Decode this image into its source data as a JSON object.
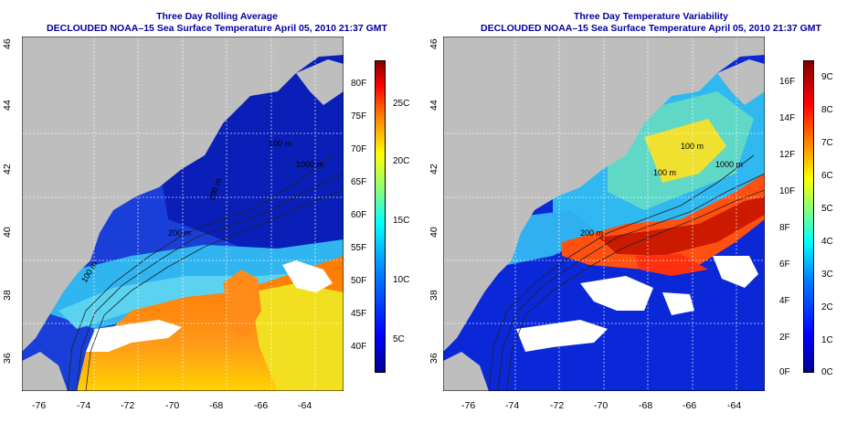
{
  "panels": [
    {
      "title_line1": "Three Day Rolling Average",
      "title_line2": "DECLOUDED NOAA–15 Sea Surface Temperature April 05, 2010 21:37 GMT",
      "x_ticks": [
        "-76",
        "-74",
        "-72",
        "-70",
        "-68",
        "-66",
        "-64"
      ],
      "y_ticks": [
        "36",
        "38",
        "40",
        "42",
        "44",
        "46"
      ],
      "contour_labels": [
        "1000 m",
        "100 m",
        "200 m",
        "100 m",
        "200 m"
      ],
      "colorbar_left_labels": [
        "80F",
        "75F",
        "70F",
        "65F",
        "60F",
        "55F",
        "50F",
        "45F",
        "40F"
      ],
      "colorbar_right_labels": [
        "25C",
        "20C",
        "15C",
        "10C",
        "5C"
      ]
    },
    {
      "title_line1": "Three Day Temperature Variability",
      "title_line2": "DECLOUDED NOAA–15 Sea Surface Temperature April 05, 2010 21:37 GMT",
      "x_ticks": [
        "-76",
        "-74",
        "-72",
        "-70",
        "-68",
        "-66",
        "-64"
      ],
      "y_ticks": [
        "36",
        "38",
        "40",
        "42",
        "44",
        "46"
      ],
      "contour_labels": [
        "1000 m",
        "100 m",
        "100 m",
        "200 m"
      ],
      "colorbar_left_labels": [
        "16F",
        "14F",
        "12F",
        "10F",
        "8F",
        "6F",
        "4F",
        "2F",
        "0F"
      ],
      "colorbar_right_labels": [
        "9C",
        "8C",
        "7C",
        "6C",
        "5C",
        "4C",
        "3C",
        "2C",
        "1C",
        "0C"
      ]
    }
  ],
  "colors": {
    "land": "#bebebe",
    "title": "#0000a0",
    "jet_low": "#00008f",
    "jet_high": "#800000",
    "grid": "#ffffff"
  }
}
